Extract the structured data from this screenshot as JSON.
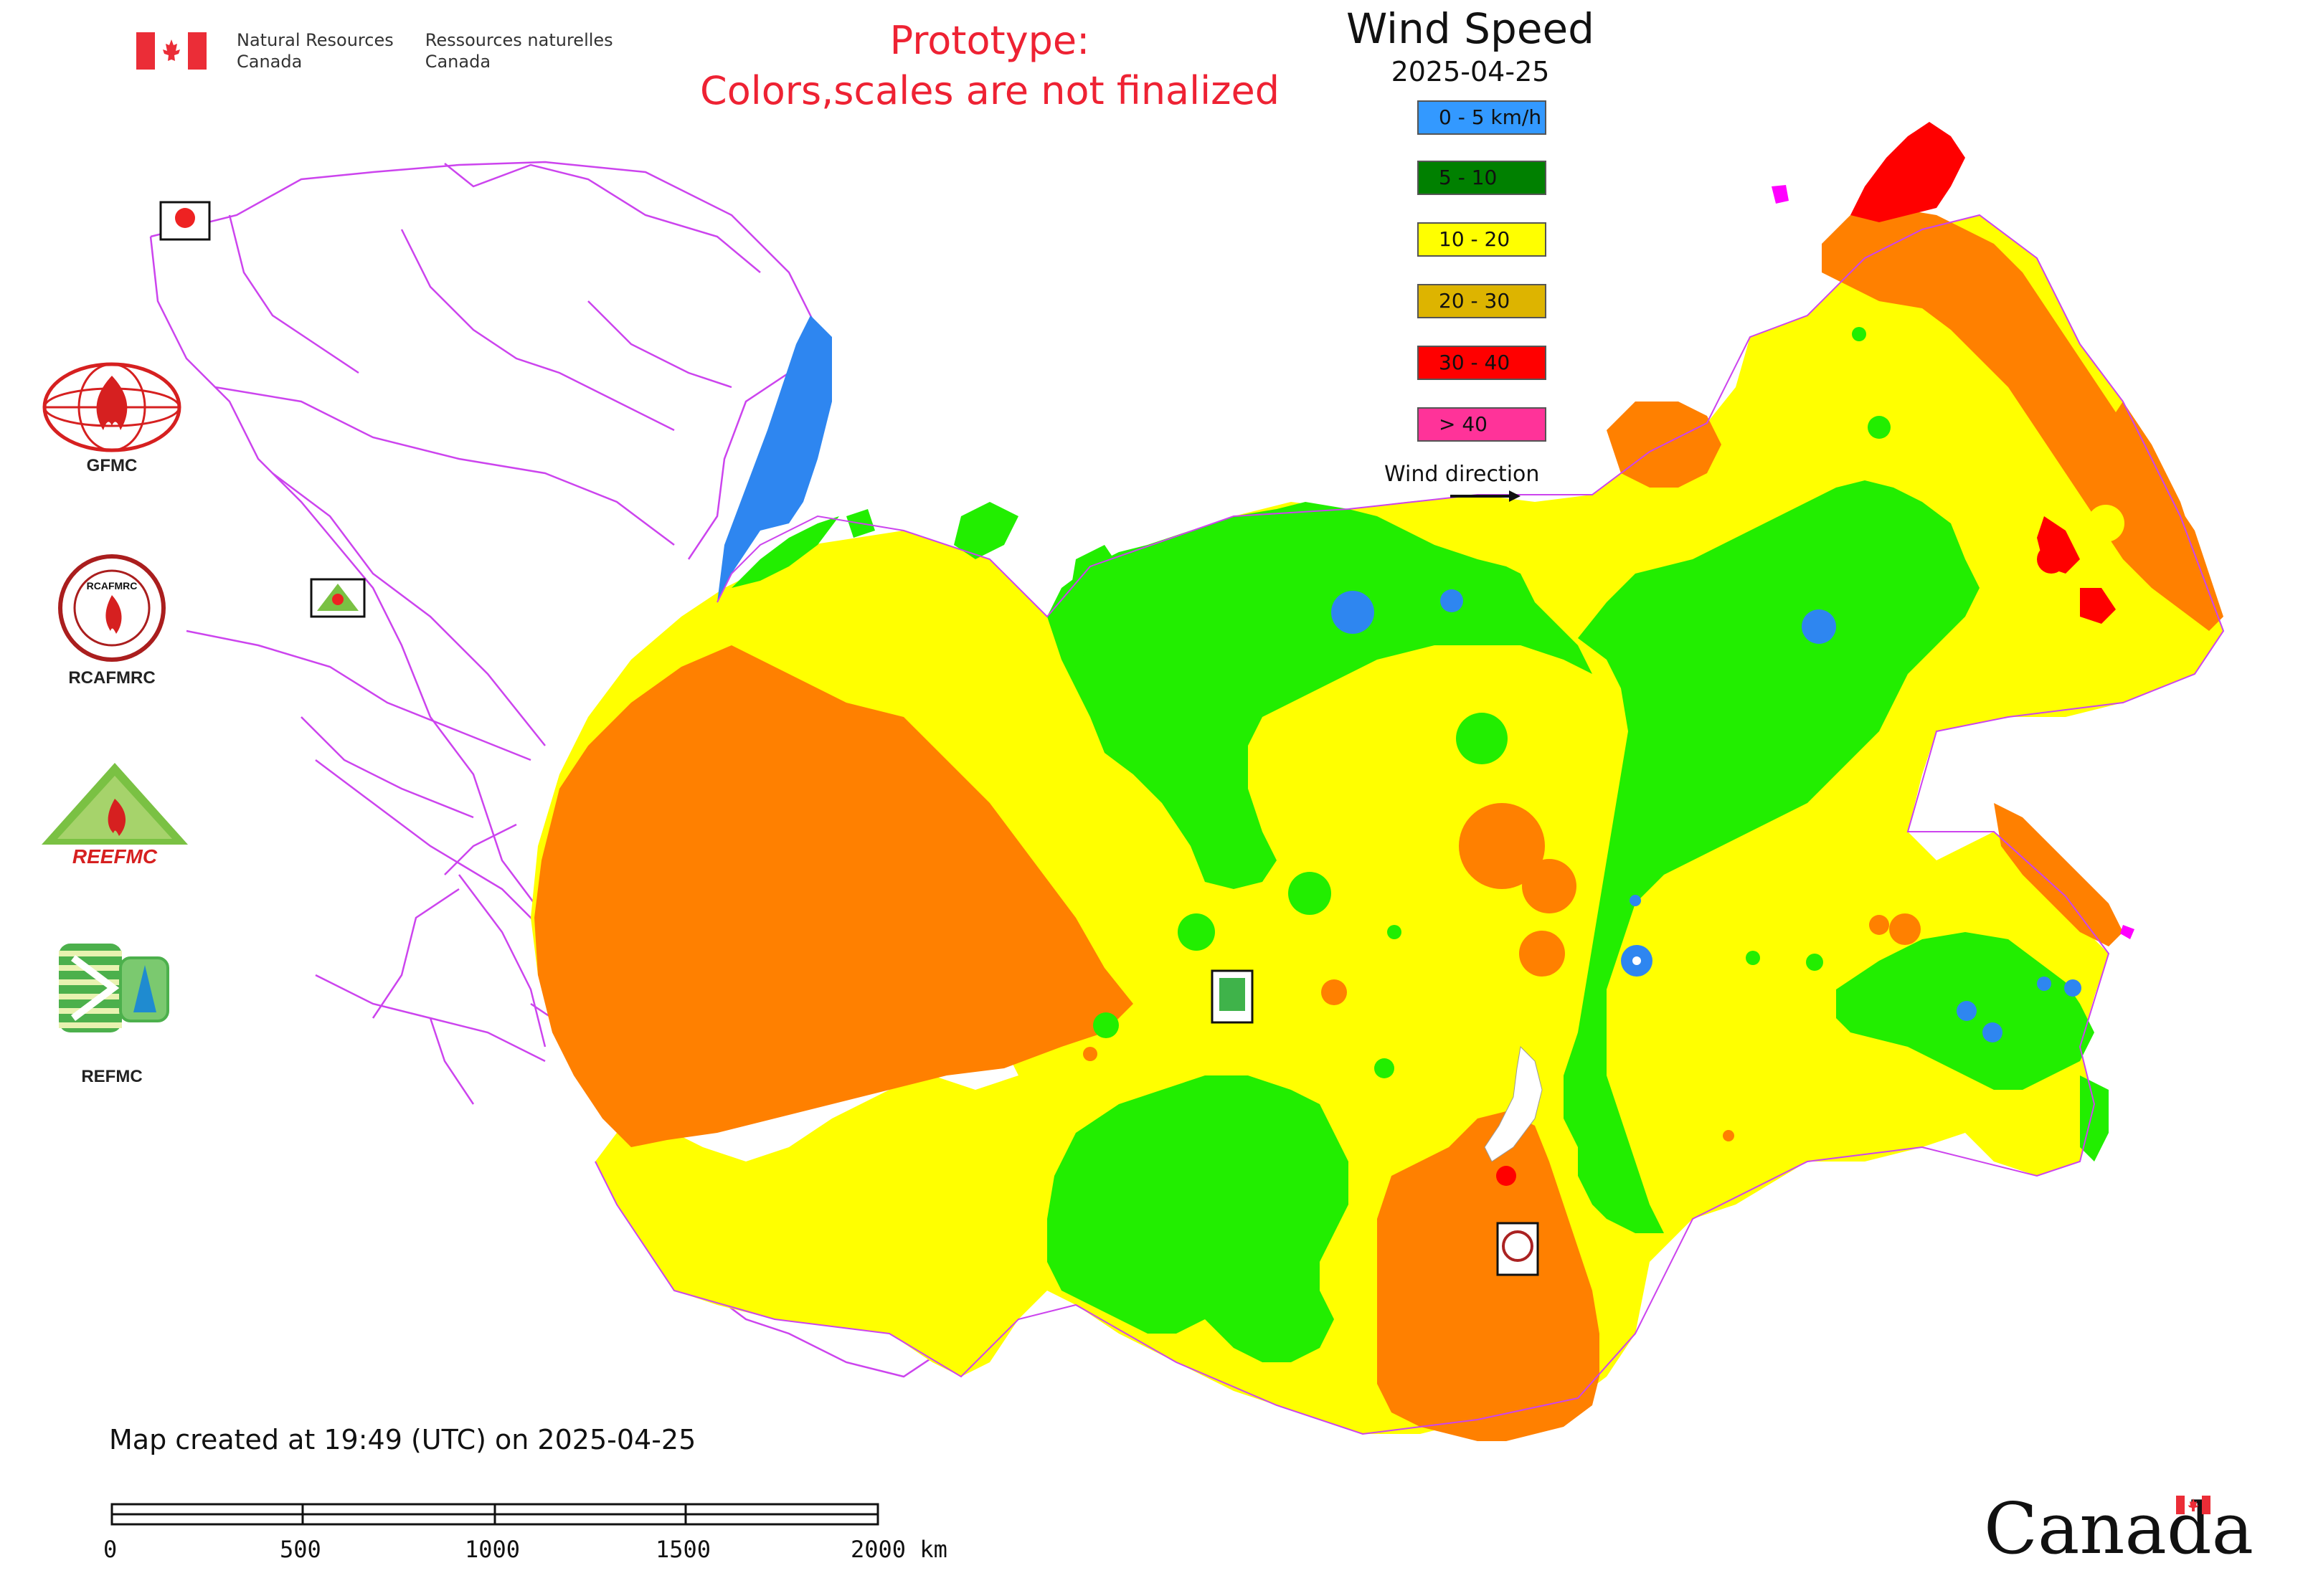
{
  "header": {
    "agency_en_line1": "Natural Resources",
    "agency_en_line2": "Canada",
    "agency_fr_line1": "Ressources naturelles",
    "agency_fr_line2": "Canada",
    "prototype_line1": "Prototype:",
    "prototype_line2": "Colors,scales are not finalized"
  },
  "map": {
    "title": "Wind Speed",
    "date": "2025-04-25",
    "legend": [
      {
        "label": "0 - 5 km/h",
        "color": "#3399ff"
      },
      {
        "label": "5 - 10",
        "color": "#008000"
      },
      {
        "label": "10 - 20",
        "color": "#ffff00"
      },
      {
        "label": "20 - 30",
        "color": "#ddb400"
      },
      {
        "label": "30 - 40",
        "color": "#ff0000"
      },
      {
        "label": "> 40",
        "color": "#ff3399"
      }
    ],
    "wind_direction_label": "Wind direction",
    "zone_colors": {
      "blue": "#2e86f0",
      "green": "#22ee00",
      "yellow": "#ffff00",
      "orange": "#ff8000",
      "red": "#ff0000",
      "magenta": "#ff00ff",
      "boundary": "#cc44ee"
    }
  },
  "logos": {
    "gfmc": "GFMC",
    "rcafmrc": "RCAFMRC",
    "reefmc": "REEFMC",
    "refmc": "REFMC",
    "reefmc_wordmark": "REEFMC"
  },
  "footer": {
    "created": "Map created at 19:49 (UTC) on 2025-04-25",
    "scale_ticks": [
      "0",
      "500",
      "1000",
      "1500",
      "2000 km"
    ],
    "wordmark": "Canada"
  }
}
